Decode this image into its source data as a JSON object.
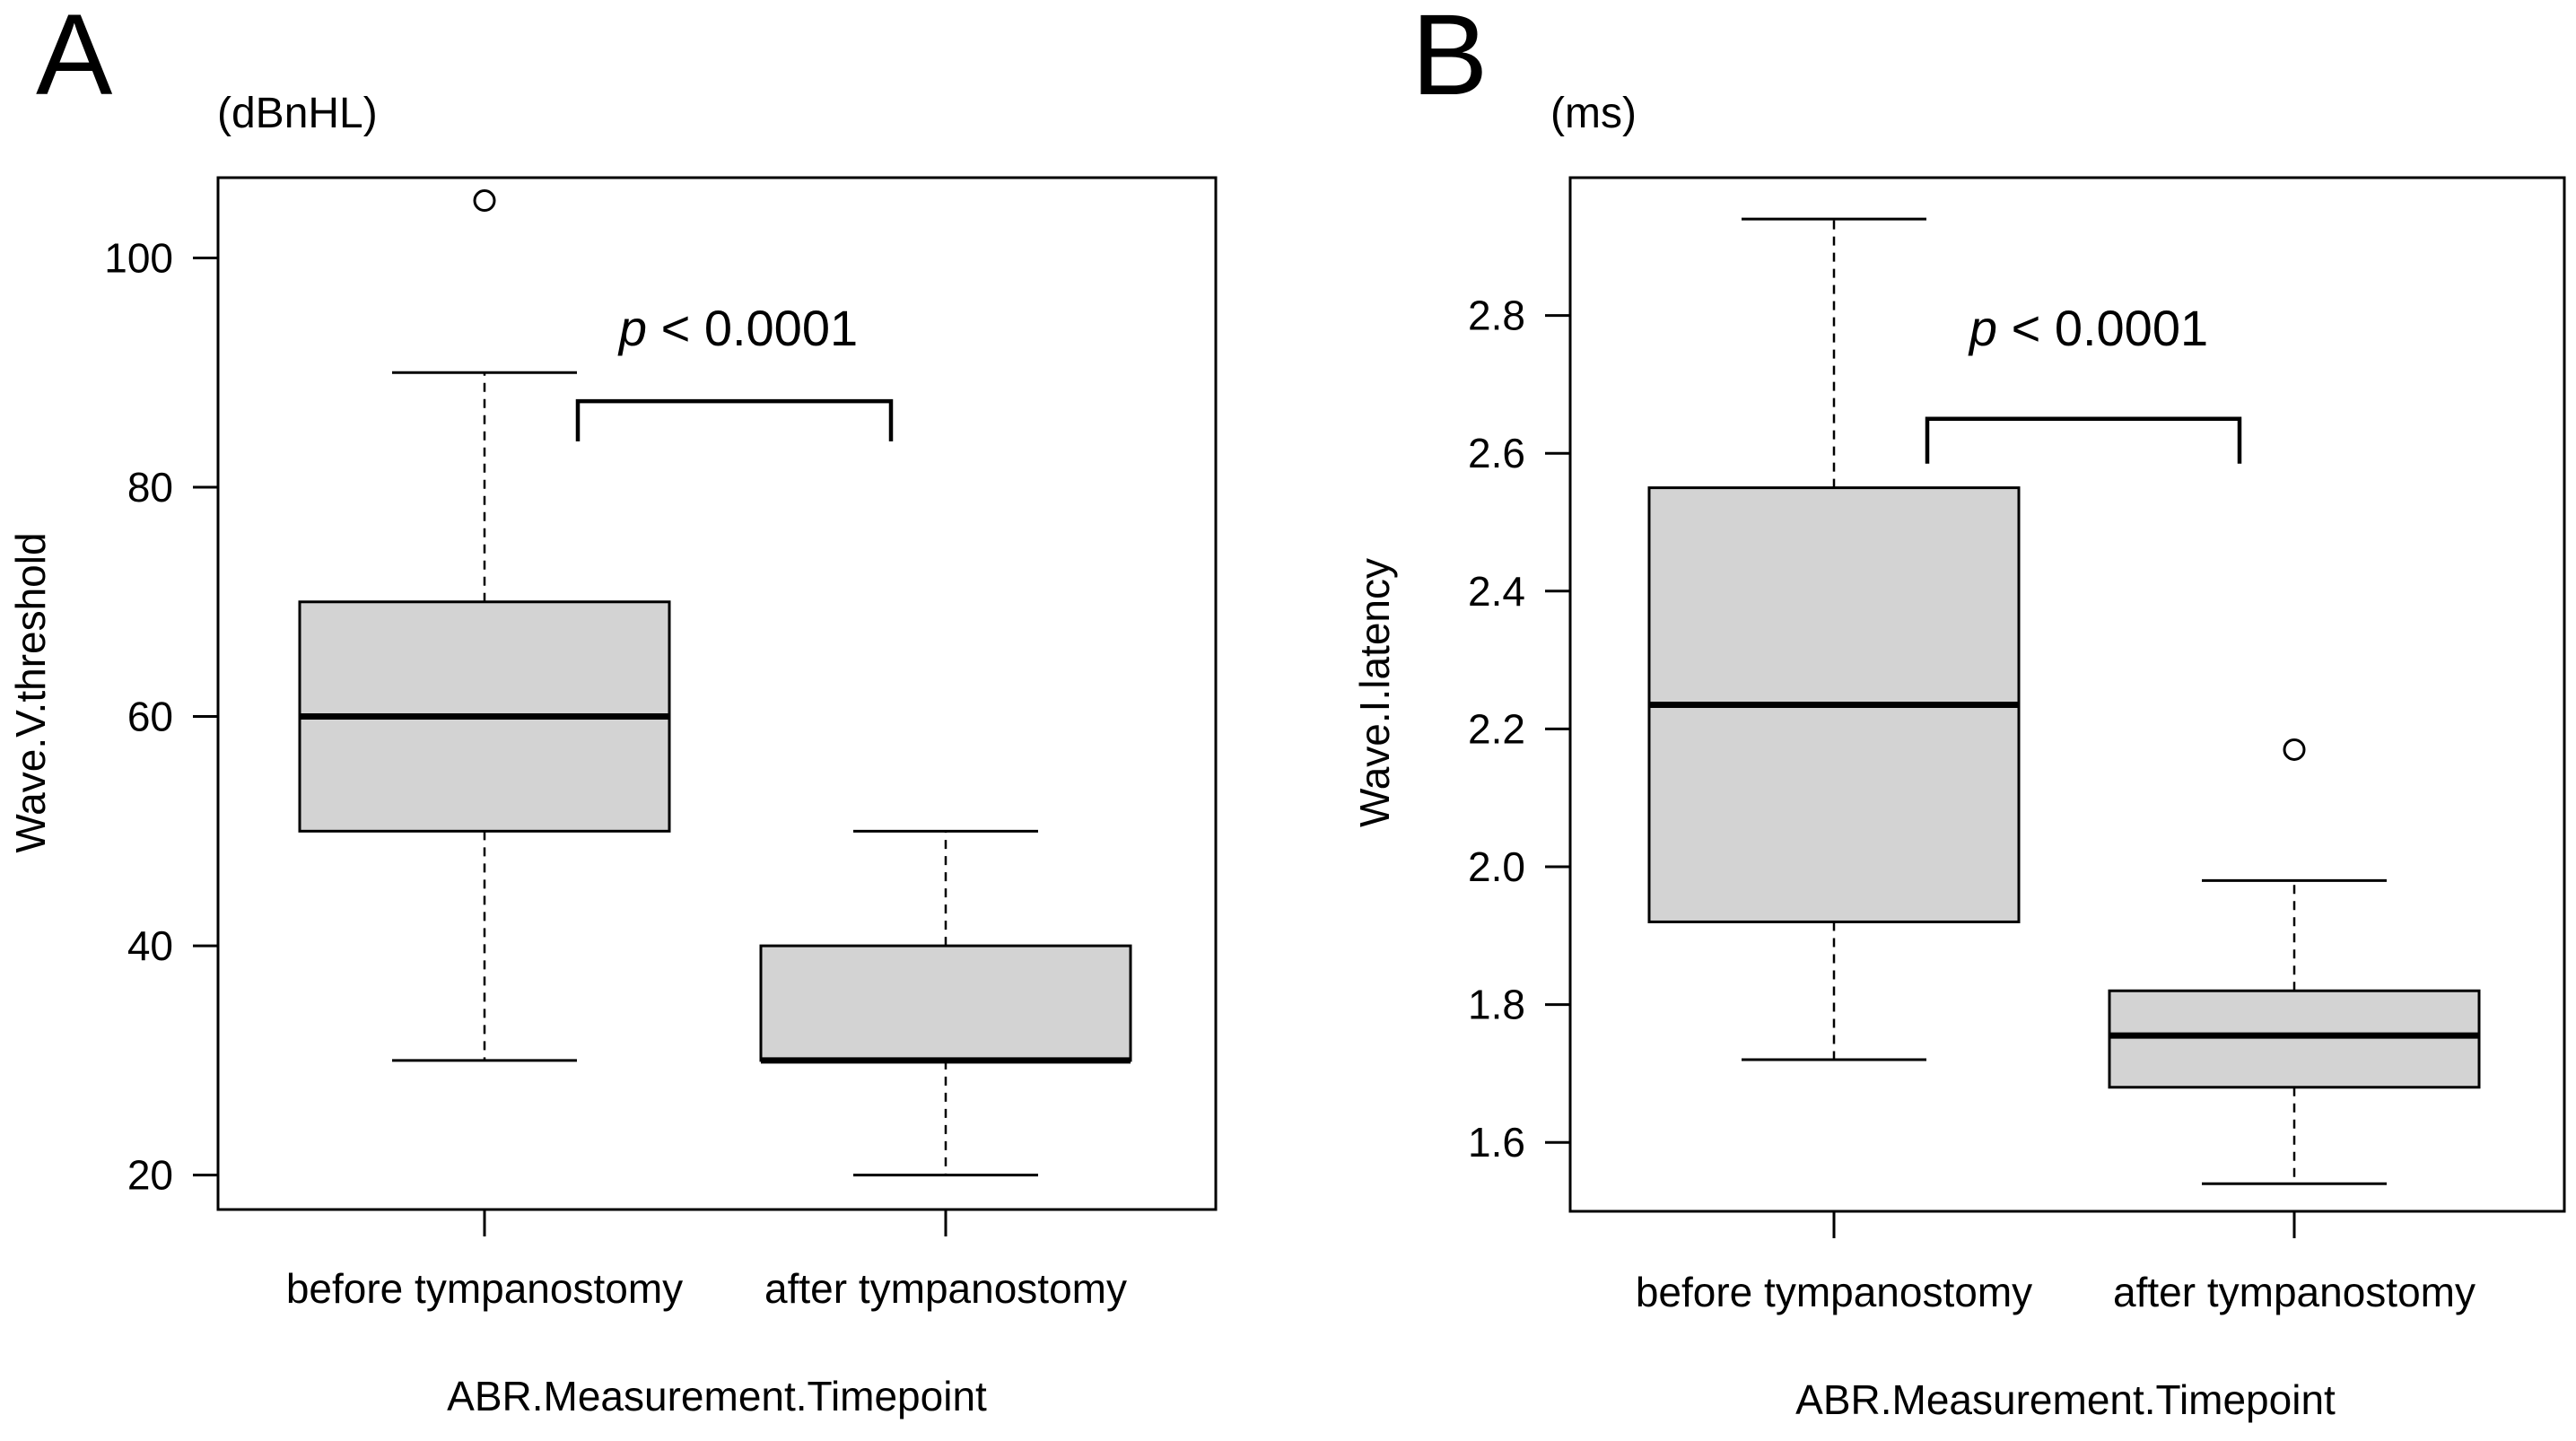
{
  "colors": {
    "box_fill": "#d3d3d3",
    "stroke": "#000000",
    "background": "#ffffff"
  },
  "chart_data": [
    {
      "type": "boxplot",
      "panel_label": "A",
      "unit_label": "(dBnHL)",
      "ylabel": "Wave.V.threshold",
      "xlabel": "ABR.Measurement.Timepoint",
      "ylim": [
        17,
        107
      ],
      "yticks": [
        20,
        40,
        60,
        80,
        100
      ],
      "ytick_labels": [
        "20",
        "40",
        "60",
        "80",
        "100"
      ],
      "categories": [
        "before tympanostomy",
        "after tympanostomy"
      ],
      "boxes": [
        {
          "whisker_low": 30,
          "q1": 50,
          "median": 60,
          "q3": 70,
          "whisker_high": 90,
          "outliers": [
            105
          ]
        },
        {
          "whisker_low": 20,
          "q1": 30,
          "median": 30,
          "q3": 40,
          "whisker_high": 50,
          "outliers": []
        }
      ],
      "annotation": {
        "p_symbol": "p",
        "p_rest": " < 0.0001",
        "bracket_level": 87.5,
        "bracket_drop": 84
      }
    },
    {
      "type": "boxplot",
      "panel_label": "B",
      "unit_label": "(ms)",
      "ylabel": "Wave.I.latency",
      "xlabel": "ABR.Measurement.Timepoint",
      "ylim": [
        1.5,
        3.0
      ],
      "yticks": [
        1.6,
        1.8,
        2.0,
        2.2,
        2.4,
        2.6,
        2.8
      ],
      "ytick_labels": [
        "1.6",
        "1.8",
        "2.0",
        "2.2",
        "2.4",
        "2.6",
        "2.8"
      ],
      "categories": [
        "before tympanostomy",
        "after tympanostomy"
      ],
      "boxes": [
        {
          "whisker_low": 1.72,
          "q1": 1.92,
          "median": 2.235,
          "q3": 2.55,
          "whisker_high": 2.94,
          "outliers": []
        },
        {
          "whisker_low": 1.54,
          "q1": 1.68,
          "median": 1.755,
          "q3": 1.82,
          "whisker_high": 1.98,
          "outliers": [
            2.17
          ]
        }
      ],
      "annotation": {
        "p_symbol": "p",
        "p_rest": " < 0.0001",
        "bracket_level": 2.65,
        "bracket_drop": 2.585
      }
    }
  ]
}
